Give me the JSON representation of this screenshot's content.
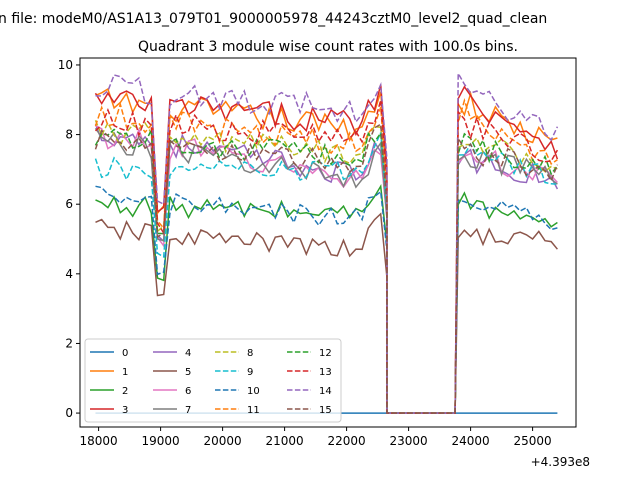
{
  "figure": {
    "top_title": "n file: modeM0/AS1A13_079T01_9000005978_44243cztM0_level2_quad_clean",
    "offset_label": "+4.393e8"
  },
  "chart_data": {
    "type": "line",
    "title": "Quadrant 3 module wise count rates with 100.0s bins.",
    "xlabel": "",
    "ylabel": "",
    "xlim": [
      17700,
      25700
    ],
    "ylim": [
      -0.4,
      10.2
    ],
    "x_ticks": [
      18000,
      19000,
      20000,
      21000,
      22000,
      23000,
      24000,
      25000
    ],
    "y_ticks": [
      0,
      2,
      4,
      6,
      8,
      10
    ],
    "x_offset": 439300000,
    "grid": false,
    "legend": {
      "position": "lower-left",
      "columns": 4
    },
    "gaps": [
      [
        22650,
        23750
      ]
    ],
    "segments": {
      "seg1": [
        17950,
        22600
      ],
      "seg2": [
        23800,
        25450
      ],
      "bin": 100
    },
    "series": [
      {
        "name": "0",
        "color": "#1f77b4",
        "style": "solid",
        "seg1": [
          0,
          0
        ],
        "seg2": [
          0,
          0
        ]
      },
      {
        "name": "1",
        "color": "#ff7f0e",
        "style": "solid",
        "seg1": [
          9.0,
          8.1
        ],
        "seg2": [
          9.0,
          7.6
        ]
      },
      {
        "name": "2",
        "color": "#2ca02c",
        "style": "solid",
        "seg1": [
          6.0,
          5.7
        ],
        "seg2": [
          6.1,
          5.2
        ]
      },
      {
        "name": "3",
        "color": "#d62728",
        "style": "solid",
        "seg1": [
          9.0,
          8.3
        ],
        "seg2": [
          9.2,
          7.6
        ]
      },
      {
        "name": "4",
        "color": "#9467bd",
        "style": "solid",
        "seg1": [
          8.1,
          6.7
        ],
        "seg2": [
          7.3,
          6.7
        ]
      },
      {
        "name": "5",
        "color": "#8c564b",
        "style": "solid",
        "seg1": [
          5.3,
          4.6
        ],
        "seg2": [
          5.2,
          4.9
        ]
      },
      {
        "name": "6",
        "color": "#e377c2",
        "style": "solid",
        "seg1": [
          8.0,
          6.6
        ],
        "seg2": [
          7.4,
          6.8
        ]
      },
      {
        "name": "7",
        "color": "#7f7f7f",
        "style": "solid",
        "seg1": [
          7.9,
          6.6
        ],
        "seg2": [
          7.5,
          6.7
        ]
      },
      {
        "name": "8",
        "color": "#bcbd22",
        "style": "dashed",
        "seg1": [
          8.1,
          7.4
        ],
        "seg2": [
          7.9,
          7.1
        ]
      },
      {
        "name": "9",
        "color": "#17becf",
        "style": "dashed",
        "seg1": [
          7.0,
          6.9
        ],
        "seg2": [
          7.7,
          6.6
        ]
      },
      {
        "name": "10",
        "color": "#1f77b4",
        "style": "dashed",
        "seg1": [
          6.2,
          5.5
        ],
        "seg2": [
          6.4,
          5.3
        ]
      },
      {
        "name": "11",
        "color": "#ff7f0e",
        "style": "dashed",
        "seg1": [
          8.6,
          7.6
        ],
        "seg2": [
          8.7,
          7.2
        ]
      },
      {
        "name": "12",
        "color": "#2ca02c",
        "style": "dashed",
        "seg1": [
          8.0,
          7.2
        ],
        "seg2": [
          7.8,
          7.0
        ]
      },
      {
        "name": "13",
        "color": "#d62728",
        "style": "dashed",
        "seg1": [
          8.4,
          7.8
        ],
        "seg2": [
          8.3,
          7.4
        ]
      },
      {
        "name": "14",
        "color": "#9467bd",
        "style": "dashed",
        "seg1": [
          9.4,
          8.6
        ],
        "seg2": [
          9.4,
          8.0
        ]
      },
      {
        "name": "15",
        "color": "#8c564b",
        "style": "dashed",
        "seg1": [
          7.8,
          7.1
        ],
        "seg2": [
          7.6,
          6.9
        ]
      }
    ]
  }
}
